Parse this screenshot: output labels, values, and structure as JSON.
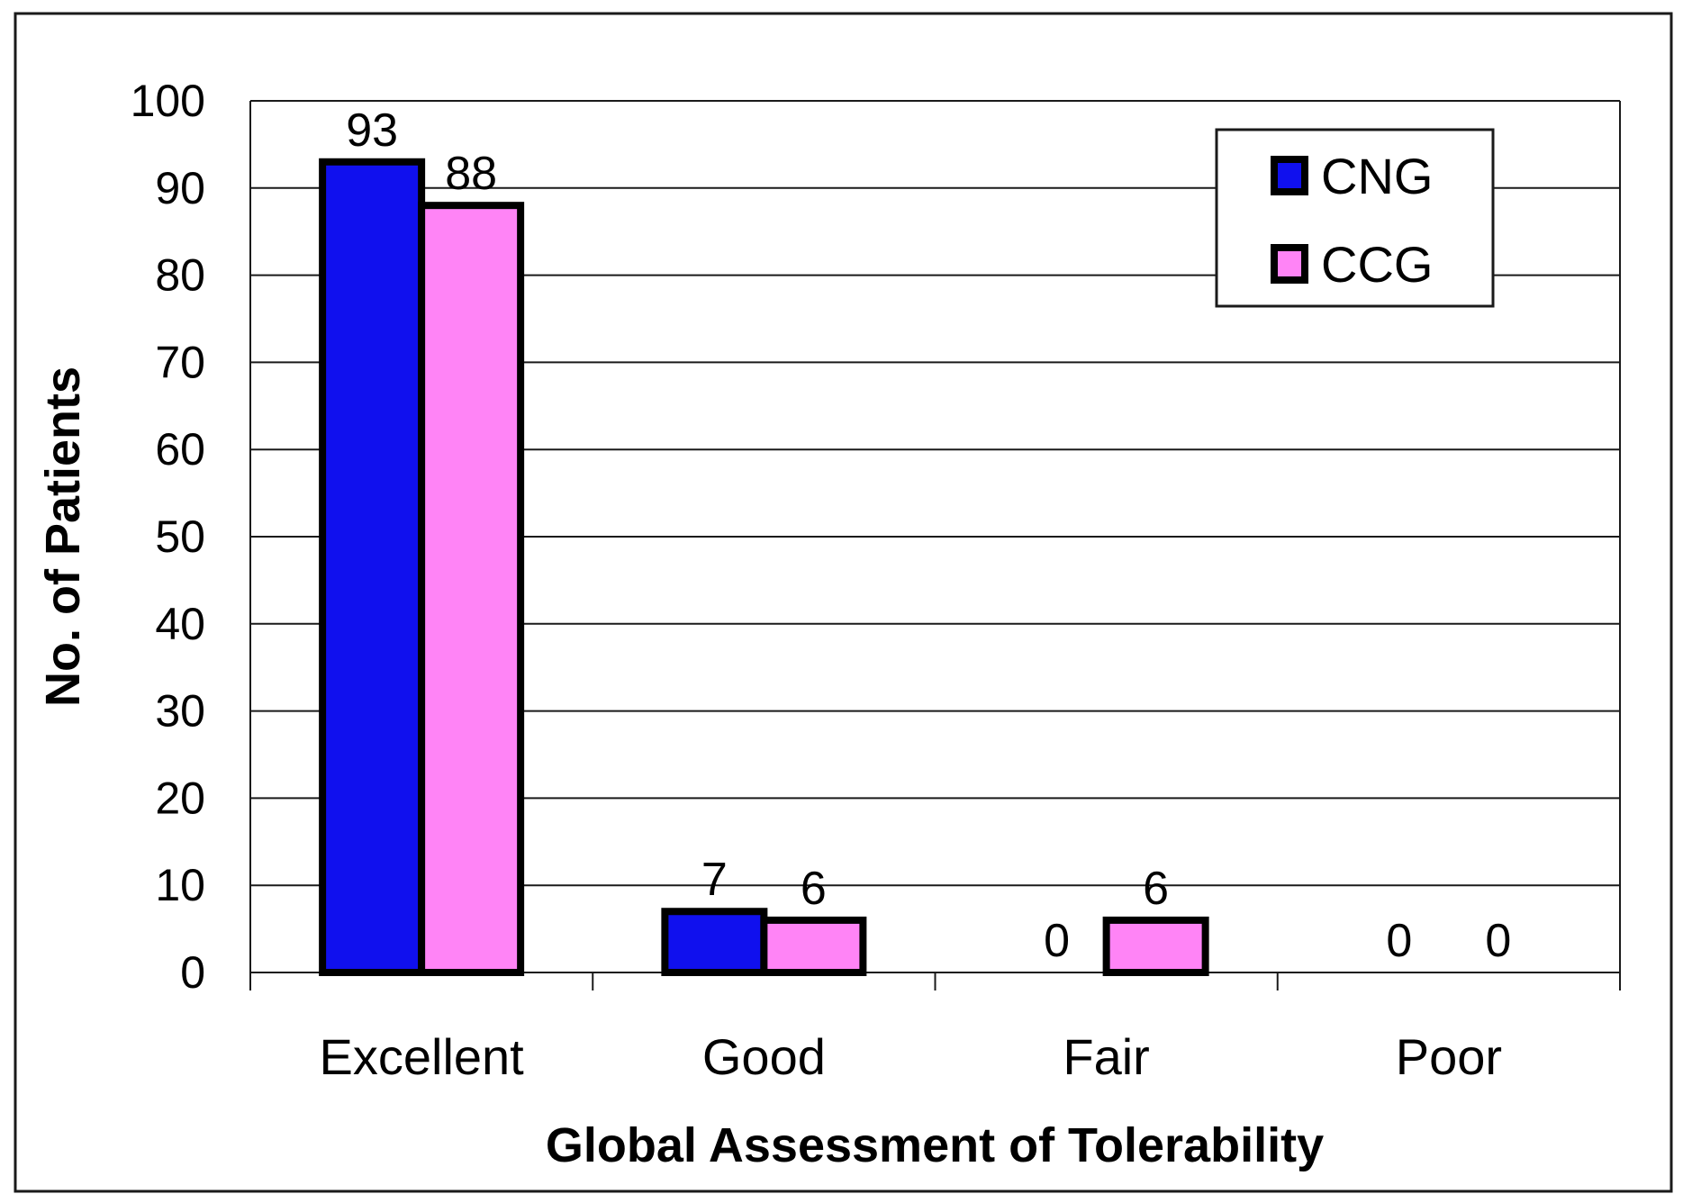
{
  "chart_data": {
    "type": "bar",
    "title": "",
    "xlabel": "Global Assessment of Tolerability",
    "ylabel": "No. of Patients",
    "categories": [
      "Excellent",
      "Good",
      "Fair",
      "Poor"
    ],
    "series": [
      {
        "name": "CNG",
        "color": "#1010ee",
        "values": [
          93,
          7,
          0,
          0
        ]
      },
      {
        "name": "CCG",
        "color": "#ff84f6",
        "values": [
          88,
          6,
          6,
          0
        ]
      }
    ],
    "ylim": [
      0,
      100
    ],
    "yticks": [
      0,
      10,
      20,
      30,
      40,
      50,
      60,
      70,
      80,
      90,
      100
    ],
    "ytick_labels": [
      "0",
      "10",
      "20",
      "30",
      "40",
      "50",
      "60",
      "70",
      "80",
      "90",
      "100"
    ],
    "data_labels": [
      [
        "93",
        "7",
        "0",
        "0"
      ],
      [
        "88",
        "6",
        "6",
        "0"
      ]
    ],
    "grid": true,
    "legend": {
      "position": "top-right",
      "entries": [
        "CNG",
        "CCG"
      ]
    }
  }
}
